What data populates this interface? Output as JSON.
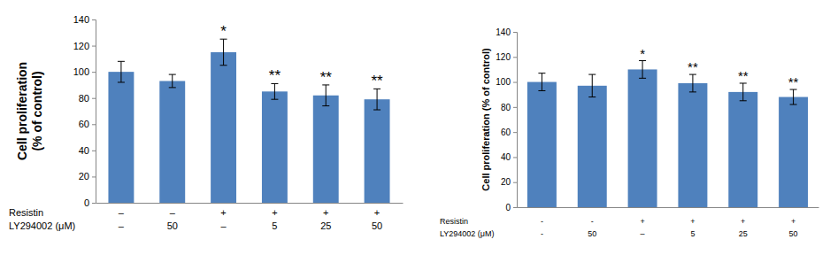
{
  "chart_data": [
    {
      "type": "bar",
      "y_label": [
        "Cell proliferation",
        "(% of control)"
      ],
      "x_rows": [
        {
          "label": "Resistin",
          "labels": [
            "–",
            "–",
            "+",
            "+",
            "+",
            "+"
          ]
        },
        {
          "label": "LY294002 (μM)",
          "labels": [
            "–",
            "50",
            "–",
            "5",
            "25",
            "50"
          ]
        }
      ],
      "values": [
        100,
        93,
        115,
        85,
        82,
        79
      ],
      "errors": [
        8,
        5,
        10,
        6,
        8,
        8
      ],
      "annotations": [
        null,
        null,
        "*",
        "**",
        "**",
        "**"
      ],
      "color": "#4f81bd",
      "ylim": [
        0,
        140
      ],
      "yticks": [
        0,
        20,
        40,
        60,
        80,
        100,
        120,
        140
      ]
    },
    {
      "type": "bar",
      "y_label": "Cell proliferation (% of control)",
      "x_rows": [
        {
          "label": "Resistin",
          "labels": [
            "-",
            "-",
            "+",
            "+",
            "+",
            "+"
          ]
        },
        {
          "label": "LY294002 (μM)",
          "labels": [
            "-",
            "50",
            "–",
            "5",
            "25",
            "50"
          ]
        }
      ],
      "values": [
        100,
        97,
        110,
        99,
        92,
        88
      ],
      "errors": [
        7,
        9,
        7,
        7,
        7,
        6
      ],
      "annotations": [
        null,
        null,
        "*",
        "**",
        "**",
        "**"
      ],
      "color": "#4f81bd",
      "ylim": [
        0,
        140
      ],
      "yticks": [
        0,
        20,
        40,
        60,
        80,
        100,
        120,
        140
      ]
    }
  ]
}
